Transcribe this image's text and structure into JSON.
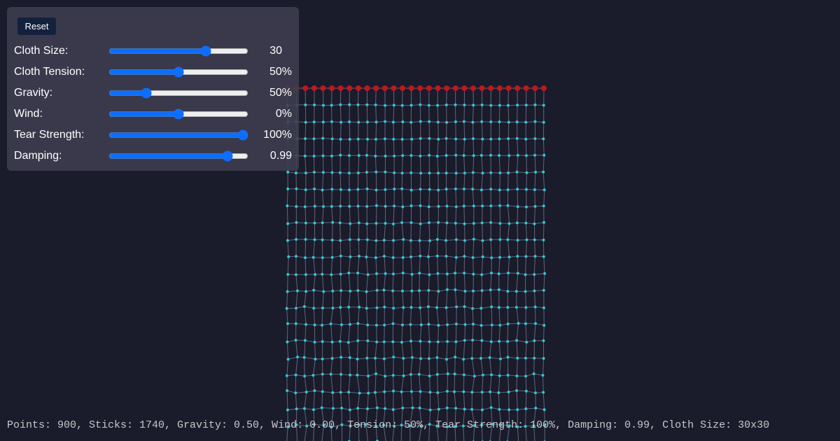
{
  "controls": {
    "reset": "Reset",
    "rows": [
      {
        "label": "Cloth Size:",
        "value": "30"
      },
      {
        "label": "Cloth Tension:",
        "value": "50%"
      },
      {
        "label": "Gravity:",
        "value": "50%"
      },
      {
        "label": "Wind:",
        "value": "0%"
      },
      {
        "label": "Tear Strength:",
        "value": "100%"
      },
      {
        "label": "Damping:",
        "value": "0.99"
      }
    ]
  },
  "status": "Points: 900, Sticks: 1740, Gravity: 0.50, Wind: 0.00, Tension: 50%, Tear Strength: 100%, Damping: 0.99, Cloth Size: 30x30"
}
